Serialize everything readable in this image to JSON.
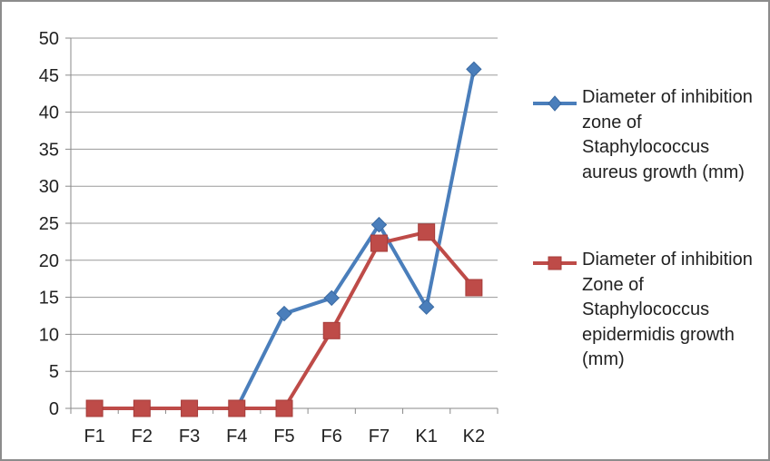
{
  "chart_data": {
    "type": "line",
    "categories": [
      "F1",
      "F2",
      "F3",
      "F4",
      "F5",
      "F6",
      "F7",
      "K1",
      "K2"
    ],
    "ylim": [
      0,
      50
    ],
    "yticks": [
      0,
      5,
      10,
      15,
      20,
      25,
      30,
      35,
      40,
      45,
      50
    ],
    "grid": true,
    "legend_position": "right",
    "series": [
      {
        "name": "Diameter of inhibition zone of Staphylococcus aureus growth (mm)",
        "color": "#4a7ebb",
        "marker": "diamond",
        "values": [
          0,
          0,
          0,
          0,
          12.8,
          14.9,
          24.8,
          13.7,
          45.8
        ]
      },
      {
        "name": "Diameter of inhibition Zone of Staphylococcus epidermidis growth (mm)",
        "color": "#be4b48",
        "marker": "square",
        "values": [
          0,
          0,
          0,
          0,
          0,
          10.5,
          22.3,
          23.8,
          16.3
        ]
      }
    ]
  }
}
